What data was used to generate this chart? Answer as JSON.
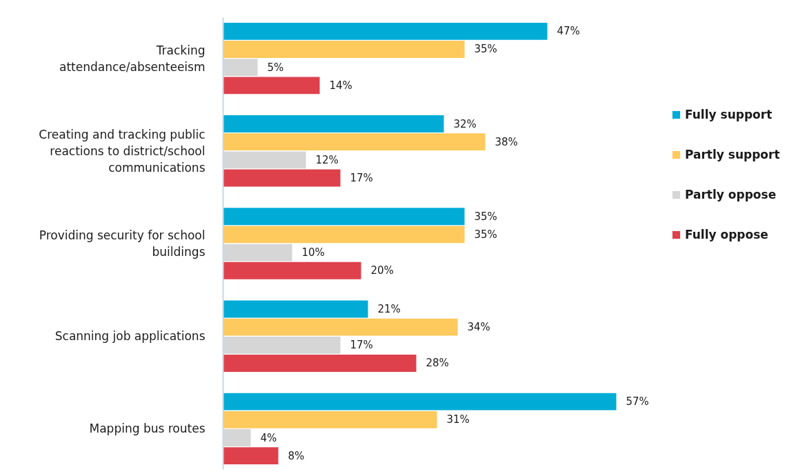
{
  "chart_data": {
    "type": "bar",
    "orientation": "horizontal",
    "categories": [
      "Tracking attendance/absenteeism",
      "Creating and tracking public reactions to district/school communications",
      "Providing security for school buildings",
      "Scanning job applications",
      "Mapping bus routes"
    ],
    "series": [
      {
        "name": "Fully support",
        "color": "#00acd6",
        "values": [
          47,
          32,
          35,
          21,
          57
        ],
        "value_labels": [
          "47%",
          "32%",
          "35%",
          "21%",
          "57%"
        ]
      },
      {
        "name": "Partly support",
        "color": "#fec95d",
        "values": [
          35,
          38,
          35,
          34,
          31
        ],
        "value_labels": [
          "35%",
          "38%",
          "35%",
          "34%",
          "31%"
        ]
      },
      {
        "name": "Partly oppose",
        "color": "#d6d6d6",
        "values": [
          5,
          12,
          10,
          17,
          4
        ],
        "value_labels": [
          "5%",
          "12%",
          "10%",
          "17%",
          "4%"
        ]
      },
      {
        "name": "Fully oppose",
        "color": "#de414c",
        "values": [
          14,
          17,
          20,
          28,
          8
        ],
        "value_labels": [
          "14%",
          "17%",
          "20%",
          "28%",
          "8%"
        ]
      }
    ],
    "legend": "right",
    "grid": false
  }
}
